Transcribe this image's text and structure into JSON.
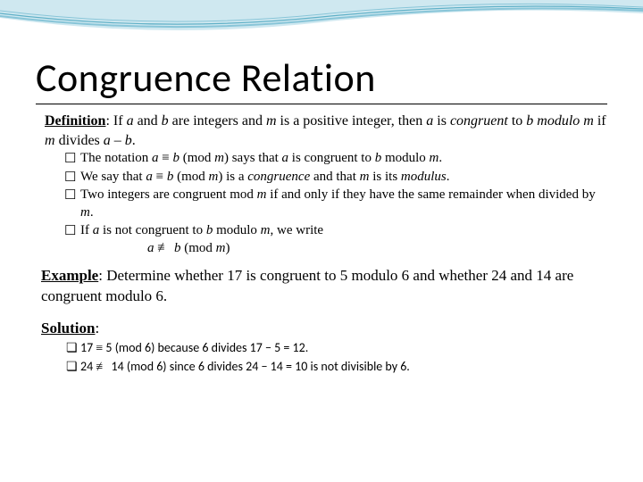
{
  "colors": {
    "wave_light": "#cfe8f0",
    "wave_mid": "#88c5d8",
    "wave_line": "#5fb0c7",
    "text": "#000000"
  },
  "title": "Congruence Relation",
  "definition": {
    "label": "Definition",
    "pre": ": If ",
    "a1": "a",
    "and1": " and ",
    "b1": "b",
    "mid1": " are integers and ",
    "m1": "m",
    "mid2": " is a positive integer, then ",
    "a2": "a",
    "mid3": " is ",
    "congruent": "congruent",
    "to": " to ",
    "b2": "b modulo m",
    "if": " if ",
    "m2": "m",
    "divides": " divides    ",
    "ab": "a – b",
    "dot": "."
  },
  "bullets": [
    {
      "sq": "☐",
      "html": "The notation <span class='i'>a</span>  <span class='congr'>≡</span>  <span class='i'>b</span> (mod <span class='i'>m</span>)  says  that <span class='i'>a</span> is congruent to <span class='i'>b</span> modulo <span class='i'>m</span>."
    },
    {
      "sq": "☐",
      "html": "We say that <span class='i'>a</span>  <span class='congr'>≡</span>   <span class='i'>b</span> (mod <span class='i'>m</span>) is a <span class='i'>congruence</span> and that <span class='i'>m</span> is its <span class='i'>modulus</span>."
    },
    {
      "sq": "☐",
      "html": "Two integers are congruent mod <span class='i'>m</span>  if and only if they have the same remainder when divided by <span class='i'>m</span>."
    },
    {
      "sq": "☐",
      "html": "If <span class='i'>a</span> is not congruent to <span class='i'>b</span> modulo <span class='i'>m</span>, we write<br>&nbsp;&nbsp;&nbsp;&nbsp;&nbsp;&nbsp;&nbsp;&nbsp;&nbsp;&nbsp;&nbsp;&nbsp;&nbsp;&nbsp;&nbsp;&nbsp;&nbsp;&nbsp;&nbsp;&nbsp;<span class='i'>a</span> <span class='congr'>≢</span>  <span class='i'>b</span> (mod <span class='i'>m</span>)"
    }
  ],
  "example": {
    "label": "Example",
    "text": ": Determine whether 17 is congruent to 5 modulo 6 and whether 24 and 14 are congruent modulo 6."
  },
  "solution": {
    "label": "Solution",
    "colon": ":",
    "items": [
      {
        "sq": "❏",
        "html": "17 <span class='congr'>≡</span> 5 (mod 6) because 6 divides 17 − 5 = 12."
      },
      {
        "sq": "❏",
        "html": "24 <span class='congr'>≢</span> 14 (mod 6) since 6 divides 24 − 14 = 10  is not divisible by 6."
      }
    ]
  }
}
